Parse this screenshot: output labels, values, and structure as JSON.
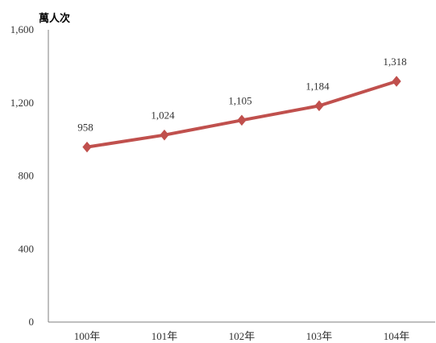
{
  "chart_data": {
    "type": "line",
    "title": "",
    "ylabel": "萬人次",
    "xlabel": "",
    "categories": [
      "100年",
      "101年",
      "102年",
      "103年",
      "104年"
    ],
    "series": [
      {
        "values": [
          958,
          1024,
          1105,
          1184,
          1318
        ],
        "data_labels": [
          "958",
          "1,024",
          "1,105",
          "1,184",
          "1,318"
        ],
        "color": "#c0504d"
      }
    ],
    "ylim": [
      0,
      1600
    ],
    "yticks": [
      0,
      400,
      800,
      1200,
      1600
    ],
    "ytick_labels": [
      "0",
      "400",
      "800",
      "1,200",
      "1,600"
    ],
    "grid": false,
    "legend": "none"
  }
}
